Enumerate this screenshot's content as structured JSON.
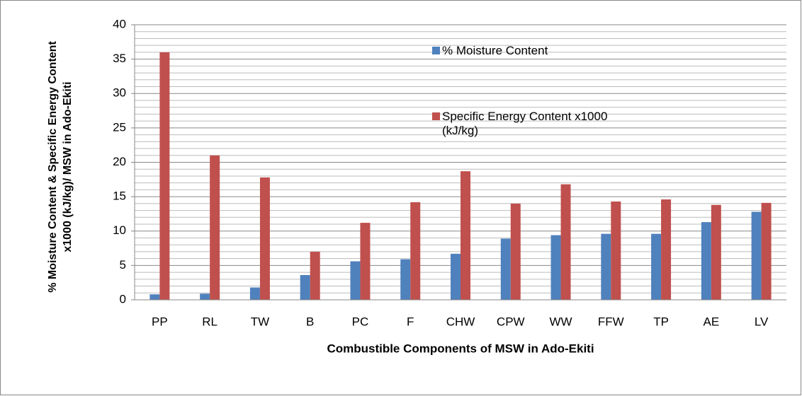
{
  "chart_data": {
    "type": "bar",
    "x_label": "Combustible Components of MSW in Ado-Ekiti",
    "y_label": "% Moisture Content & Specific Energy Content  x1000 (kJ/kg)/  MSW in Ado-Ekiti",
    "categories": [
      "PP",
      "RL",
      "TW",
      "B",
      "PC",
      "F",
      "CHW",
      "CPW",
      "WW",
      "FFW",
      "TP",
      "AE",
      "LV"
    ],
    "series": [
      {
        "name": "% Moisture Content",
        "color": "#4f81bd",
        "values": [
          0.8,
          0.9,
          1.8,
          3.6,
          5.6,
          5.9,
          6.7,
          8.9,
          9.4,
          9.6,
          9.6,
          11.3,
          12.8
        ]
      },
      {
        "name": "Specific Energy Content x1000 (kJ/kg)",
        "color": "#c0504d",
        "values": [
          36,
          21,
          17.8,
          7,
          11.2,
          14.2,
          18.7,
          14,
          16.8,
          14.3,
          14.6,
          13.8,
          14.1
        ]
      }
    ],
    "ylim": [
      0,
      40
    ],
    "yticks": [
      0,
      5,
      10,
      15,
      20,
      25,
      30,
      35,
      40
    ],
    "grid": true
  }
}
